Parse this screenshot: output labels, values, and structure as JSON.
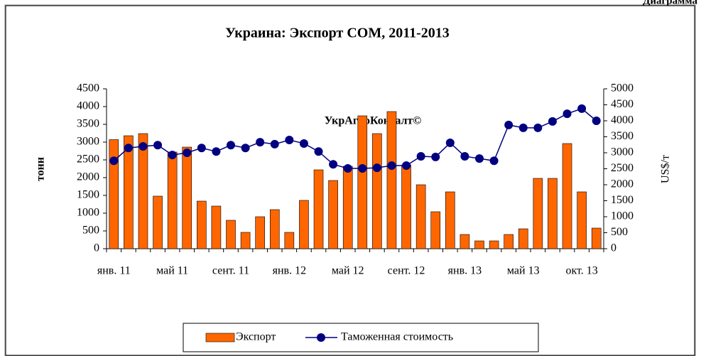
{
  "corner_label": "Диаграмма",
  "chart_data": {
    "type": "bar_line",
    "title": "Украина: Экспорт СОМ, 2011-2013",
    "watermark": "УкрАгроКонсалт©",
    "ylabel": "тонн",
    "y2label": "US$/т",
    "categories": [
      "янв. 11",
      null,
      null,
      null,
      "май 11",
      null,
      null,
      null,
      "сент. 11",
      null,
      null,
      null,
      "янв. 12",
      null,
      null,
      null,
      "май 12",
      null,
      null,
      null,
      "сент. 12",
      null,
      null,
      null,
      "янв. 13",
      null,
      null,
      null,
      "май 13",
      null,
      null,
      null,
      "окт. 13",
      null
    ],
    "series": [
      {
        "name": "Экспорт",
        "type": "bar",
        "color": "#ff6600",
        "values": [
          3070,
          3180,
          3240,
          1480,
          2720,
          2860,
          1340,
          1200,
          800,
          460,
          900,
          1100,
          460,
          1360,
          2220,
          1920,
          2320,
          3740,
          3240,
          3860,
          2360,
          1800,
          1040,
          1600,
          400,
          220,
          220,
          400,
          560,
          1980,
          1980,
          2960,
          1600,
          580
        ]
      },
      {
        "name": "Таможенная стоимость",
        "type": "line",
        "axis": "y2",
        "color": "#000080",
        "values": [
          2750,
          3150,
          3200,
          3240,
          2930,
          3000,
          3150,
          3040,
          3240,
          3150,
          3330,
          3270,
          3400,
          3290,
          3040,
          2640,
          2510,
          2510,
          2530,
          2600,
          2600,
          2890,
          2870,
          3310,
          2890,
          2820,
          2750,
          3870,
          3780,
          3780,
          3980,
          4220,
          4380,
          4000
        ]
      }
    ],
    "ylim": [
      0,
      4500
    ],
    "yticks": [
      0,
      500,
      1000,
      1500,
      2000,
      2500,
      3000,
      3500,
      4000,
      4500
    ],
    "y2lim": [
      0,
      5000
    ],
    "y2ticks": [
      0,
      500,
      1000,
      1500,
      2000,
      2500,
      3000,
      3500,
      4000,
      4500,
      5000
    ],
    "legend": "bottom"
  }
}
